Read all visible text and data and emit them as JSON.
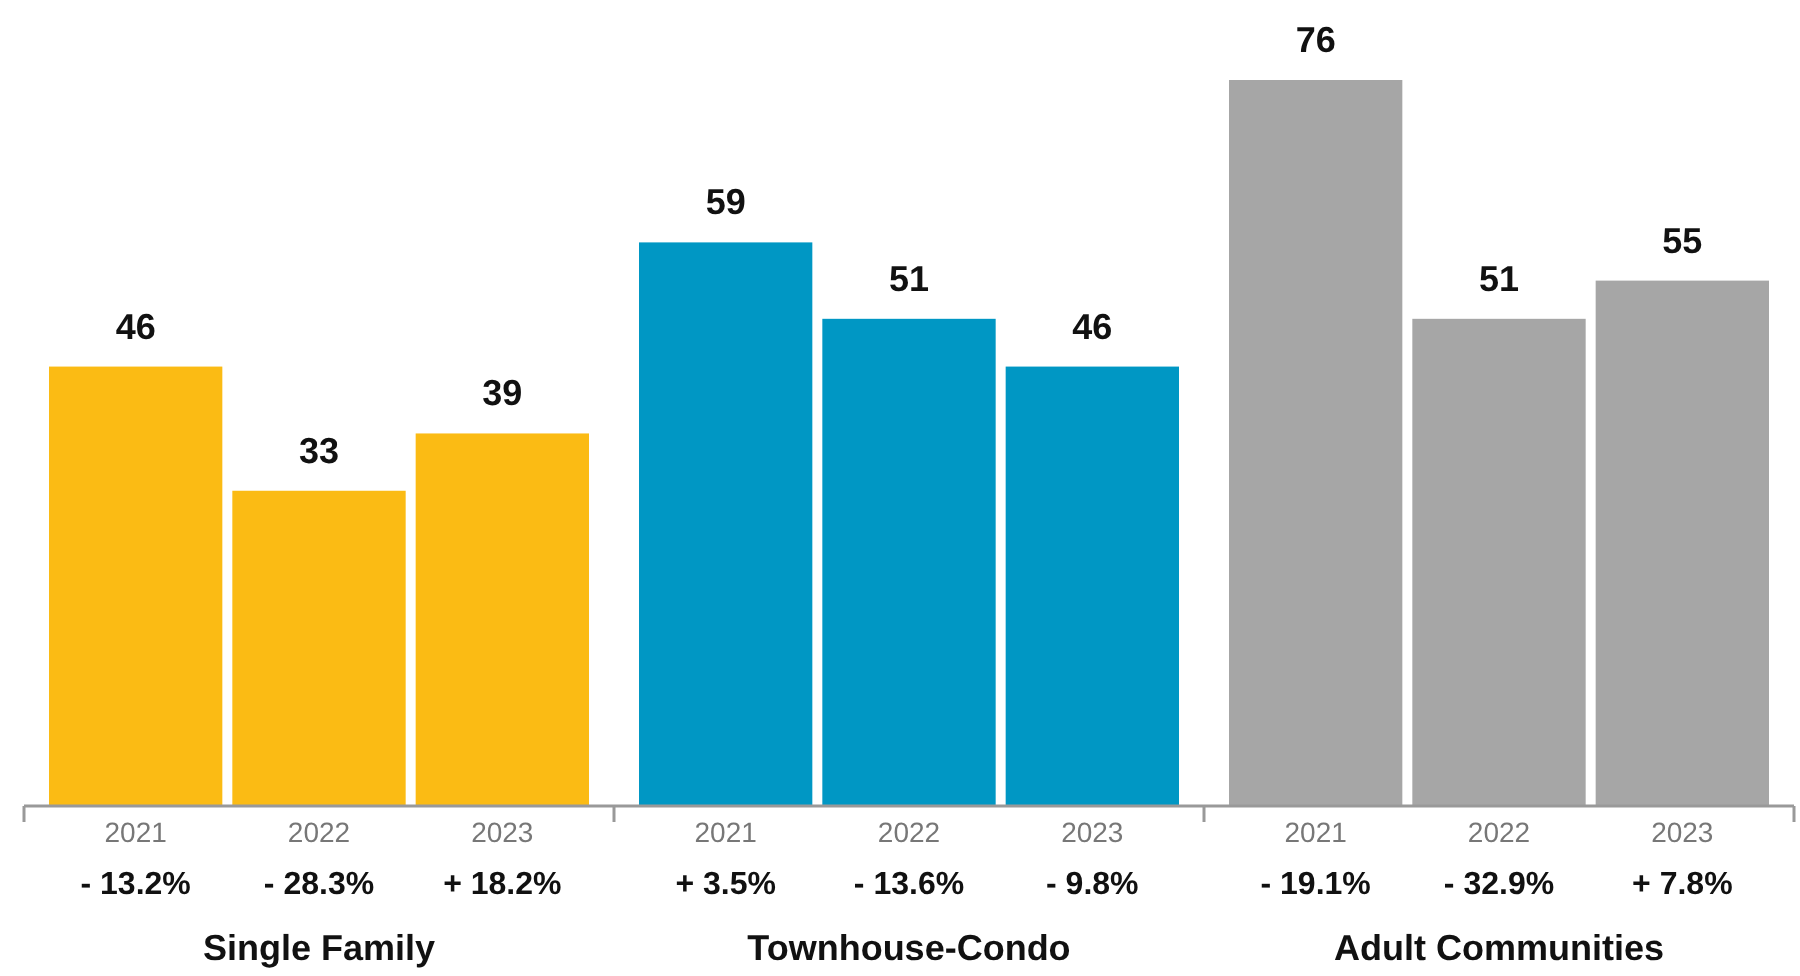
{
  "chart_data": {
    "type": "bar",
    "categories": [
      "2021",
      "2022",
      "2023",
      "2021",
      "2022",
      "2023",
      "2021",
      "2022",
      "2023"
    ],
    "values": [
      46,
      33,
      39,
      59,
      51,
      46,
      76,
      51,
      55
    ],
    "colors": [
      "#fbbb14",
      "#fbbb14",
      "#fbbb14",
      "#0097c4",
      "#0097c4",
      "#0097c4",
      "#a6a6a6",
      "#a6a6a6",
      "#a6a6a6"
    ],
    "data_labels": true,
    "annotations": [
      "- 13.2%",
      "- 28.3%",
      "+ 18.2%",
      "+ 3.5%",
      "- 13.6%",
      "- 9.8%",
      "- 19.1%",
      "- 32.9%",
      "+ 7.8%",
      "Single Family",
      "Townhouse-Condo",
      "Adult Communities"
    ]
  }
}
